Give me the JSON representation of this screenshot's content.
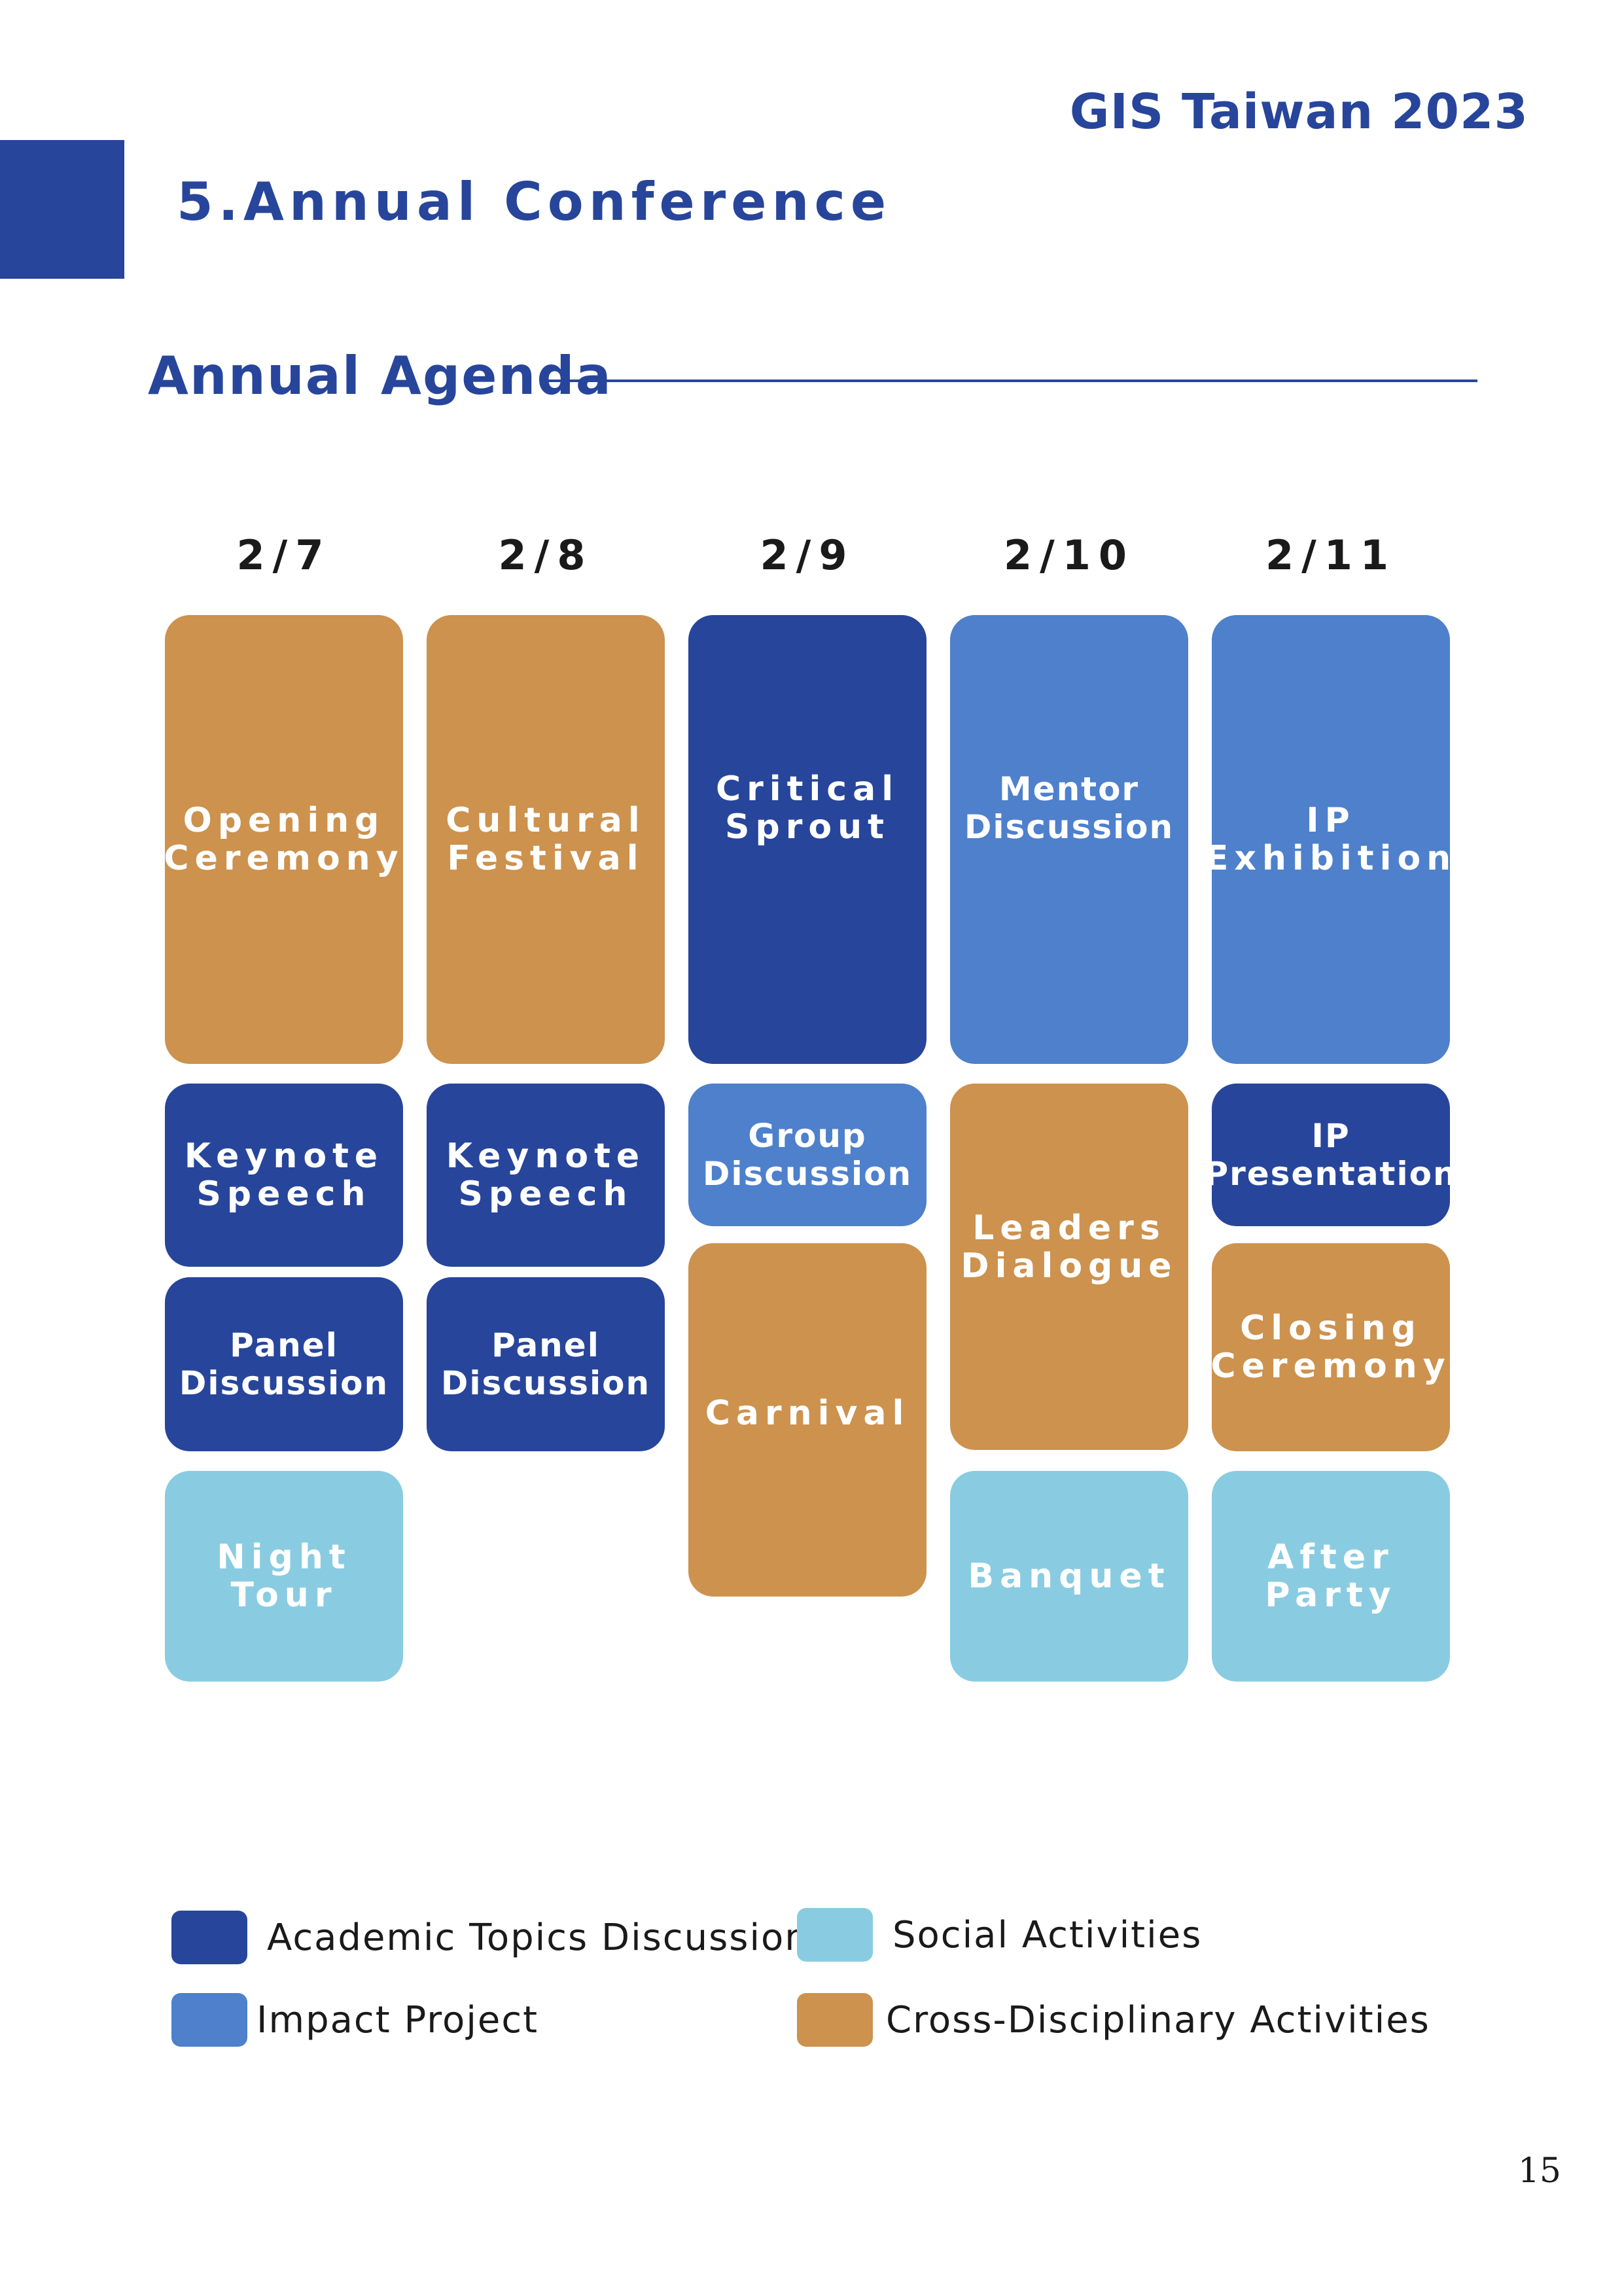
{
  "header": {
    "brand": "GIS Taiwan 2023",
    "section_title": "5.Annual Conference",
    "subtitle": "Annual Agenda"
  },
  "agenda": {
    "dates": [
      "2/7",
      "2/8",
      "2/9",
      "2/10",
      "2/11"
    ],
    "events": {
      "opening_ceremony": "Opening\nCeremony",
      "cultural_festival": "Cultural\nFestival",
      "critical_sprout": "Critical\nSprout",
      "mentor_discussion": "Mentor\nDiscussion",
      "ip_exhibition": "IP\nExhibition",
      "keynote_speech_1": "Keynote\nSpeech",
      "keynote_speech_2": "Keynote\nSpeech",
      "group_discussion": "Group\nDiscussion",
      "leaders_dialogue": "Leaders\nDialogue",
      "ip_presentation": "IP\nPresentation",
      "panel_discussion_1": "Panel\nDiscussion",
      "panel_discussion_2": "Panel\nDiscussion",
      "carnival": "Carnival",
      "closing_ceremony": "Closing\nCeremony",
      "night_tour": "Night\nTour",
      "banquet": "Banquet",
      "after_party": "After\nParty"
    }
  },
  "legend": {
    "academic": {
      "label": "Academic Topics Discussion",
      "color": "#27459a"
    },
    "impact": {
      "label": "Impact Project",
      "color": "#4e80cc"
    },
    "social": {
      "label": "Social Activities",
      "color": "#89cce1"
    },
    "cross": {
      "label": "Cross-Disciplinary Activities",
      "color": "#cc924e"
    }
  },
  "footer": {
    "page_number": "15"
  }
}
